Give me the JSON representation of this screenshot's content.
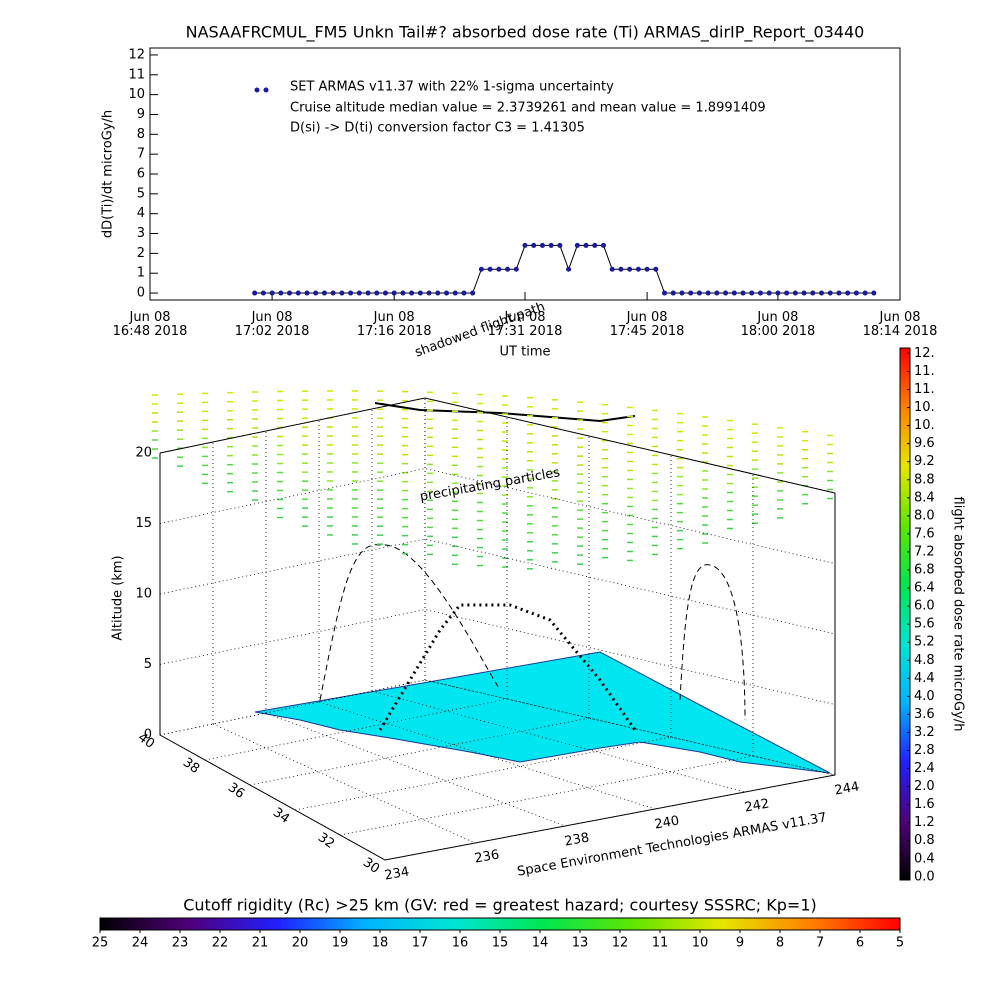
{
  "chart_data": [
    {
      "type": "line",
      "title": "NASAAFRCMUL_FM5 Unkn Tail#? absorbed dose rate (Ti) ARMAS_dirIP_Report_03440",
      "ylabel": "dD(Ti)/dt microGy/h",
      "xlabel": "UT time",
      "legend_notes": [
        "Cruise altitude median value = 2.3739261 and mean value = 1.8991409",
        "D(si) -> D(ti) conversion factor C3 = 1.41305"
      ],
      "x": [
        "17:00",
        "17:01",
        "17:02",
        "17:03",
        "17:04",
        "17:05",
        "17:06",
        "17:07",
        "17:08",
        "17:09",
        "17:10",
        "17:11",
        "17:12",
        "17:13",
        "17:14",
        "17:15",
        "17:16",
        "17:17",
        "17:18",
        "17:19",
        "17:20",
        "17:21",
        "17:22",
        "17:23",
        "17:24",
        "17:25",
        "17:26",
        "17:27",
        "17:28",
        "17:29",
        "17:30",
        "17:31",
        "17:32",
        "17:33",
        "17:34",
        "17:35",
        "17:36",
        "17:37",
        "17:38",
        "17:39",
        "17:40",
        "17:41",
        "17:42",
        "17:43",
        "17:44",
        "17:45",
        "17:46",
        "17:47",
        "17:48",
        "17:49",
        "17:50",
        "17:51",
        "17:52",
        "17:53",
        "17:54",
        "17:55",
        "17:56",
        "17:57",
        "17:58",
        "17:59",
        "18:00",
        "18:01",
        "18:02",
        "18:03",
        "18:04",
        "18:05",
        "18:06",
        "18:07",
        "18:08",
        "18:09",
        "18:10",
        "18:11"
      ],
      "series": [
        {
          "name": "SET ARMAS v11.37 with 22% 1-sigma uncertainty",
          "color": "#1a1aa0",
          "values": [
            0,
            0,
            0,
            0,
            0,
            0,
            0,
            0,
            0,
            0,
            0,
            0,
            0,
            0,
            0,
            0,
            0,
            0,
            0,
            0,
            0,
            0,
            0,
            0,
            0,
            0,
            1.2,
            1.2,
            1.2,
            1.2,
            1.2,
            2.4,
            2.4,
            2.4,
            2.4,
            2.4,
            1.2,
            2.4,
            2.4,
            2.4,
            2.4,
            1.2,
            1.2,
            1.2,
            1.2,
            1.2,
            1.2,
            0,
            0,
            0,
            0,
            0,
            0,
            0,
            0,
            0,
            0,
            0,
            0,
            0,
            0,
            0,
            0,
            0,
            0,
            0,
            0,
            0,
            0,
            0,
            0,
            0
          ]
        }
      ],
      "line_color": "#000000",
      "xlim": [
        "16:48",
        "18:14"
      ],
      "xticks": [
        {
          "value": "16:48",
          "label": "Jun 08\n16:48 2018"
        },
        {
          "value": "17:02",
          "label": "Jun 08\n17:02 2018"
        },
        {
          "value": "17:16",
          "label": "Jun 08\n17:16 2018"
        },
        {
          "value": "17:31",
          "label": "Jun 08\n17:31 2018"
        },
        {
          "value": "17:45",
          "label": "Jun 08\n17:45 2018"
        },
        {
          "value": "18:00",
          "label": "Jun 08\n18:00 2018"
        },
        {
          "value": "18:14",
          "label": "Jun 08\n18:14 2018"
        }
      ],
      "ylim": [
        -0.35,
        12.35
      ],
      "yticks": [
        0,
        1,
        2,
        3,
        4,
        5,
        6,
        7,
        8,
        9,
        10,
        11,
        12
      ]
    },
    {
      "type": "surface3d",
      "zlabel": "Altitude (km)",
      "xlim": [
        234,
        244
      ],
      "xticks": [
        234,
        236,
        238,
        240,
        242,
        244
      ],
      "ylim": [
        30,
        40
      ],
      "yticks": [
        40,
        38,
        36,
        34,
        32,
        30
      ],
      "zlim": [
        0,
        20
      ],
      "zticks": [
        0,
        5,
        10,
        15,
        20
      ],
      "annotations": [
        "precipitating particles",
        "shadowed flight path"
      ],
      "credit": "Space Environment Technologies ARMAS v11.37"
    },
    {
      "type": "colorbar",
      "label": "flight absorbed dose rate microGy/h",
      "colors": [
        "#000000",
        "#50007a",
        "#2020ff",
        "#00b4ff",
        "#00e6d2",
        "#00e650",
        "#60e600",
        "#e6e600",
        "#ff8000",
        "#ff0000"
      ],
      "ylim": [
        -0.07,
        11.72
      ],
      "yticks": [
        {
          "value": 0,
          "label": "0.0"
        },
        0.4,
        0.8,
        1.2,
        1.6,
        {
          "value": 2,
          "label": "2.0"
        },
        2.4,
        2.8,
        3.2,
        3.6,
        {
          "value": 4,
          "label": "4.0"
        },
        4.4,
        4.8,
        5.2,
        5.6,
        {
          "value": 6,
          "label": "6.0"
        },
        6.4,
        6.8,
        7.2,
        7.6,
        {
          "value": 8,
          "label": "8.0"
        },
        8.4,
        8.8,
        9.2,
        9.6,
        {
          "value": 10,
          "label": "10."
        },
        {
          "value": 10.4,
          "label": "10."
        },
        {
          "value": 10.8,
          "label": "11."
        },
        {
          "value": 11.2,
          "label": "11."
        },
        {
          "value": 11.6,
          "label": "12."
        }
      ]
    },
    {
      "type": "colorbar",
      "title": "Cutoff rigidity (Rc) >25 km (GV: red = greatest hazard; courtesy SSSRC; Kp=1)",
      "colors": [
        "#000000",
        "#50007a",
        "#2020ff",
        "#00b4ff",
        "#00e6d2",
        "#00e650",
        "#60e600",
        "#e6e600",
        "#ff8000",
        "#ff0000"
      ],
      "xlim": [
        25,
        5
      ],
      "xticks": [
        25,
        24,
        23,
        22,
        21,
        20,
        19,
        18,
        17,
        16,
        15,
        14,
        13,
        12,
        11,
        10,
        9,
        8,
        7,
        6,
        5
      ]
    }
  ]
}
